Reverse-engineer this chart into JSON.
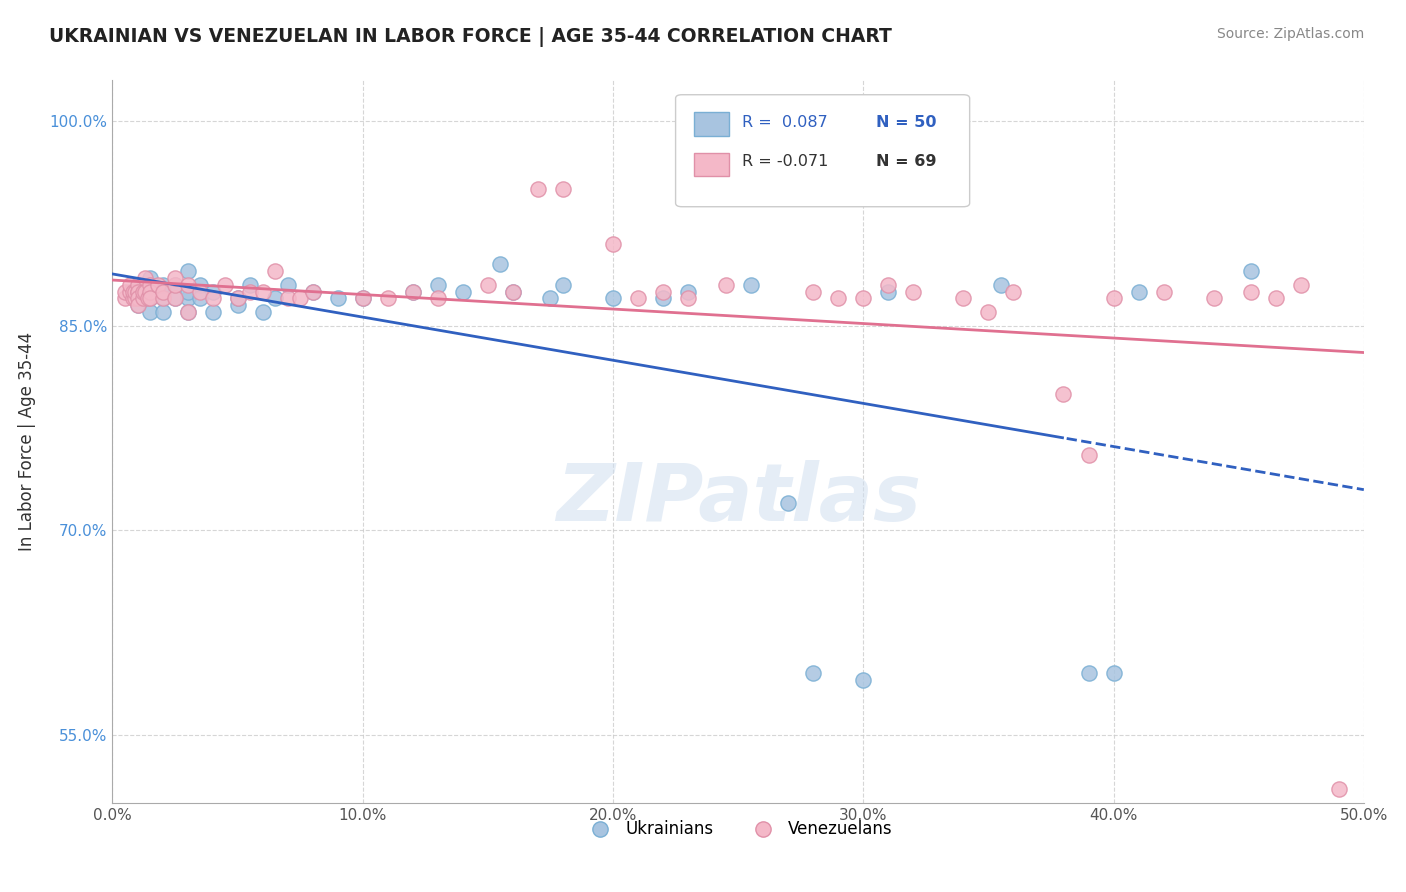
{
  "title": "UKRAINIAN VS VENEZUELAN IN LABOR FORCE | AGE 35-44 CORRELATION CHART",
  "source": "Source: ZipAtlas.com",
  "ylabel": "In Labor Force | Age 35-44",
  "xlim": [
    0.0,
    0.5
  ],
  "ylim": [
    0.5,
    1.03
  ],
  "yticks": [
    0.55,
    0.7,
    0.85,
    1.0
  ],
  "ytick_labels": [
    "55.0%",
    "70.0%",
    "85.0%",
    "100.0%"
  ],
  "xticks": [
    0.0,
    0.1,
    0.2,
    0.3,
    0.4,
    0.5
  ],
  "xtick_labels": [
    "0.0%",
    "10.0%",
    "20.0%",
    "30.0%",
    "40.0%",
    "50.0%"
  ],
  "legend_R_blue": "0.087",
  "legend_N_blue": "50",
  "legend_R_pink": "-0.071",
  "legend_N_pink": "69",
  "blue_color": "#a8c4e0",
  "pink_color": "#f4b8c8",
  "blue_line_color": "#3060c0",
  "pink_line_color": "#e07090",
  "blue_scatter_x": [
    0.01,
    0.01,
    0.01,
    0.015,
    0.015,
    0.015,
    0.015,
    0.02,
    0.02,
    0.02,
    0.02,
    0.025,
    0.025,
    0.03,
    0.03,
    0.03,
    0.03,
    0.035,
    0.035,
    0.04,
    0.04,
    0.05,
    0.05,
    0.055,
    0.06,
    0.065,
    0.07,
    0.08,
    0.09,
    0.1,
    0.12,
    0.13,
    0.14,
    0.155,
    0.16,
    0.175,
    0.18,
    0.2,
    0.22,
    0.23,
    0.255,
    0.27,
    0.28,
    0.3,
    0.31,
    0.355,
    0.39,
    0.4,
    0.41,
    0.455
  ],
  "blue_scatter_y": [
    0.87,
    0.88,
    0.865,
    0.87,
    0.86,
    0.875,
    0.885,
    0.875,
    0.87,
    0.88,
    0.86,
    0.87,
    0.88,
    0.89,
    0.87,
    0.86,
    0.875,
    0.88,
    0.87,
    0.875,
    0.86,
    0.865,
    0.87,
    0.88,
    0.86,
    0.87,
    0.88,
    0.875,
    0.87,
    0.87,
    0.875,
    0.88,
    0.875,
    0.895,
    0.875,
    0.87,
    0.88,
    0.87,
    0.87,
    0.875,
    0.88,
    0.72,
    0.595,
    0.59,
    0.875,
    0.88,
    0.595,
    0.595,
    0.875,
    0.89
  ],
  "pink_scatter_x": [
    0.005,
    0.005,
    0.007,
    0.007,
    0.008,
    0.008,
    0.009,
    0.009,
    0.01,
    0.01,
    0.01,
    0.01,
    0.01,
    0.012,
    0.012,
    0.013,
    0.013,
    0.014,
    0.015,
    0.015,
    0.015,
    0.018,
    0.02,
    0.02,
    0.025,
    0.025,
    0.025,
    0.03,
    0.03,
    0.035,
    0.04,
    0.045,
    0.05,
    0.055,
    0.06,
    0.065,
    0.07,
    0.075,
    0.08,
    0.1,
    0.11,
    0.12,
    0.13,
    0.15,
    0.16,
    0.17,
    0.18,
    0.2,
    0.21,
    0.22,
    0.23,
    0.245,
    0.28,
    0.29,
    0.3,
    0.31,
    0.32,
    0.34,
    0.35,
    0.36,
    0.38,
    0.39,
    0.4,
    0.42,
    0.44,
    0.455,
    0.465,
    0.475,
    0.49
  ],
  "pink_scatter_y": [
    0.87,
    0.875,
    0.875,
    0.88,
    0.87,
    0.875,
    0.87,
    0.875,
    0.875,
    0.88,
    0.875,
    0.87,
    0.865,
    0.87,
    0.875,
    0.885,
    0.875,
    0.87,
    0.88,
    0.875,
    0.87,
    0.88,
    0.87,
    0.875,
    0.87,
    0.88,
    0.885,
    0.86,
    0.88,
    0.875,
    0.87,
    0.88,
    0.87,
    0.875,
    0.875,
    0.89,
    0.87,
    0.87,
    0.875,
    0.87,
    0.87,
    0.875,
    0.87,
    0.88,
    0.875,
    0.95,
    0.95,
    0.91,
    0.87,
    0.875,
    0.87,
    0.88,
    0.875,
    0.87,
    0.87,
    0.88,
    0.875,
    0.87,
    0.86,
    0.875,
    0.8,
    0.755,
    0.87,
    0.875,
    0.87,
    0.875,
    0.87,
    0.88,
    0.51
  ],
  "blue_line_split": 0.38
}
